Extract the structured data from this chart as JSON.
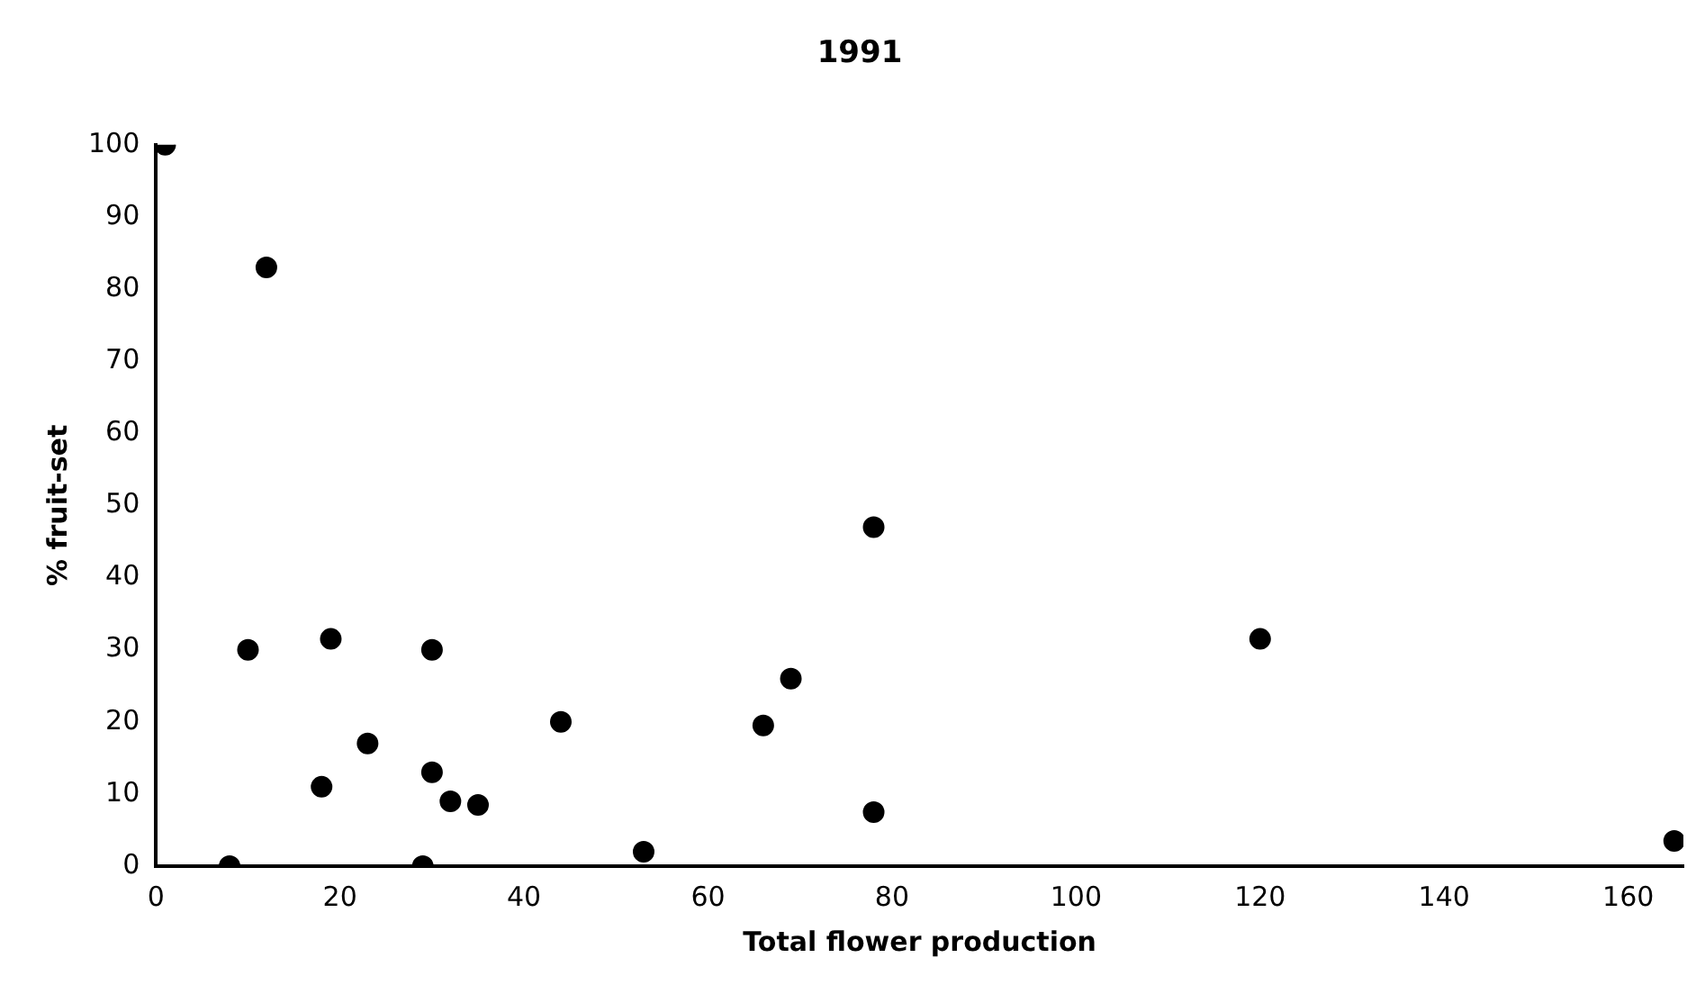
{
  "chart_data": {
    "type": "scatter",
    "title": "1991",
    "xlabel": "Total flower production",
    "ylabel": "% fruit-set",
    "x": [
      1,
      12,
      10,
      8,
      19,
      18,
      23,
      30,
      30,
      29,
      32,
      35,
      44,
      53,
      66,
      69,
      78,
      78,
      120,
      165
    ],
    "values": [
      100,
      83,
      30,
      0,
      31.5,
      11,
      17,
      30,
      13,
      0,
      9,
      8.5,
      20,
      2,
      19.5,
      26,
      47,
      7.5,
      31.5,
      3.5
    ],
    "color": "#000000",
    "marker": "circle",
    "xlim": [
      0,
      166
    ],
    "xticks": [
      0,
      20,
      40,
      60,
      80,
      100,
      120,
      140,
      160
    ],
    "ylim": [
      0,
      100
    ],
    "yticks": [
      0,
      10,
      20,
      30,
      40,
      50,
      60,
      70,
      80,
      90,
      100
    ],
    "grid": false,
    "legend": false
  }
}
